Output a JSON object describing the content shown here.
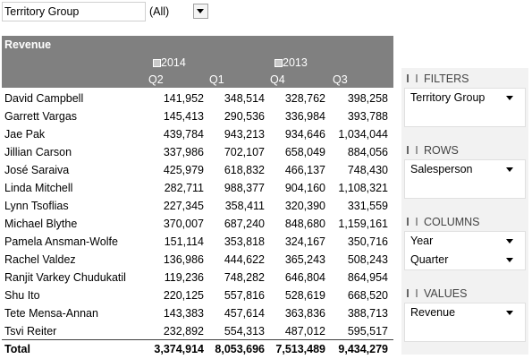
{
  "filter": {
    "label": "Territory Group",
    "value": "(All)"
  },
  "table": {
    "title": "Revenue",
    "years": [
      {
        "label": "2014",
        "quarters": [
          "Q2",
          "Q1"
        ]
      },
      {
        "label": "2013",
        "quarters": [
          "Q4",
          "Q3"
        ]
      }
    ],
    "rows": [
      [
        "David Campbell",
        "141,952",
        "348,514",
        "328,762",
        "398,258"
      ],
      [
        "Garrett Vargas",
        "145,413",
        "290,536",
        "336,984",
        "393,788"
      ],
      [
        "Jae Pak",
        "439,784",
        "943,213",
        "934,646",
        "1,034,044"
      ],
      [
        "Jillian Carson",
        "337,986",
        "702,107",
        "658,049",
        "884,056"
      ],
      [
        "José Saraiva",
        "425,979",
        "618,832",
        "466,137",
        "748,430"
      ],
      [
        "Linda Mitchell",
        "282,711",
        "988,377",
        "904,160",
        "1,108,321"
      ],
      [
        "Lynn Tsoflias",
        "227,345",
        "358,411",
        "320,390",
        "331,559"
      ],
      [
        "Michael Blythe",
        "370,007",
        "687,240",
        "848,680",
        "1,159,161"
      ],
      [
        "Pamela Ansman-Wolfe",
        "151,114",
        "353,818",
        "324,167",
        "350,716"
      ],
      [
        "Rachel Valdez",
        "136,986",
        "444,622",
        "365,243",
        "508,243"
      ],
      [
        "Ranjit Varkey Chudukatil",
        "119,236",
        "748,282",
        "646,804",
        "864,954"
      ],
      [
        "Shu Ito",
        "220,125",
        "557,816",
        "528,619",
        "668,520"
      ],
      [
        "Tete Mensa-Annan",
        "143,383",
        "457,614",
        "363,836",
        "388,713"
      ],
      [
        "Tsvi Reiter",
        "232,892",
        "554,313",
        "487,012",
        "595,517"
      ]
    ],
    "total": [
      "Total",
      "3,374,914",
      "8,053,696",
      "7,513,489",
      "9,434,279"
    ]
  },
  "fields": [
    {
      "title": "FILTERS",
      "items": [
        "Territory Group"
      ]
    },
    {
      "title": "ROWS",
      "items": [
        "Salesperson"
      ]
    },
    {
      "title": "COLUMNS",
      "items": [
        "Year",
        "Quarter"
      ]
    },
    {
      "title": "VALUES",
      "items": [
        "Revenue"
      ]
    }
  ]
}
